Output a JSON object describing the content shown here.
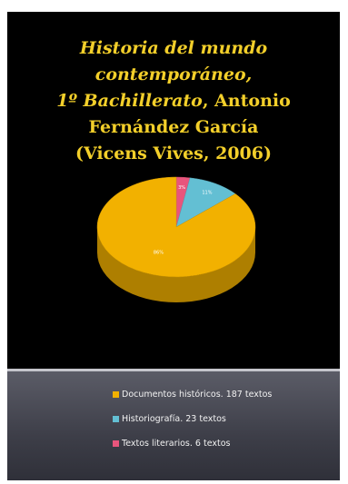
{
  "title": {
    "part1": "Historia del mundo contemporáneo,",
    "part2_italic": "1º Bachillerato",
    "part2_rest": ", Antonio Fernández García",
    "part3": "(Vicens Vives, 2006)"
  },
  "chart_data": {
    "type": "pie",
    "title": "Historia del mundo contemporáneo, 1º Bachillerato, Antonio Fernández García (Vicens Vives, 2006)",
    "series": [
      {
        "name": "Documentos históricos. 187 textos",
        "value": 187,
        "label": "86%",
        "color": "#f2b100"
      },
      {
        "name": "Historiografía. 23 textos",
        "value": 23,
        "label": "11%",
        "color": "#63bfd3"
      },
      {
        "name": "Textos literarios. 6 textos",
        "value": 6,
        "label": "3%",
        "color": "#e8557c"
      }
    ],
    "legend_position": "bottom"
  },
  "colors": {
    "title": "#f3cf2a",
    "background_top": "#000000",
    "legend_text": "#f2f2f2"
  }
}
